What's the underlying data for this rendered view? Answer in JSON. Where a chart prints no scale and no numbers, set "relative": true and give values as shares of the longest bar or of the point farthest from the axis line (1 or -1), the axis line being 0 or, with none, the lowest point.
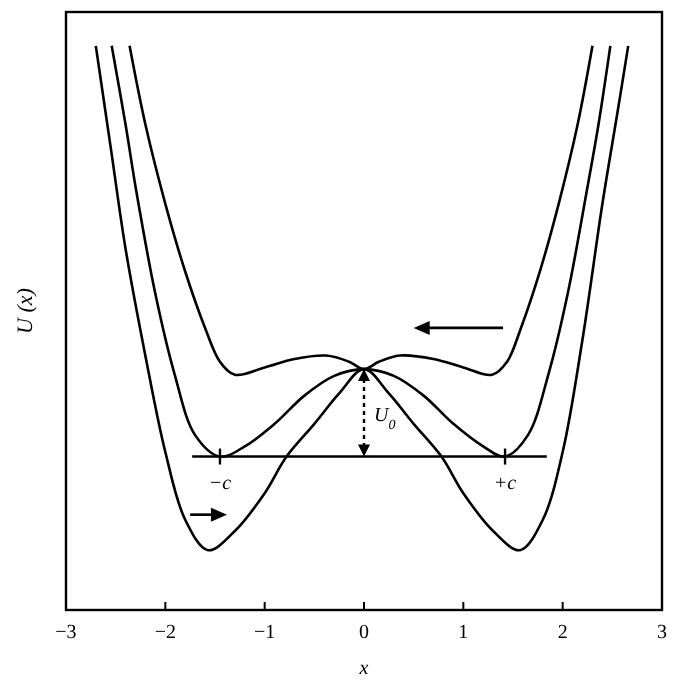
{
  "chart_data": {
    "type": "line",
    "xlabel": "x",
    "ylabel": "U (x)",
    "relative": true,
    "xlim": [
      -3,
      3
    ],
    "xticks": [
      -3,
      -2,
      -1,
      0,
      1,
      2,
      3
    ],
    "grid": false,
    "series": [
      {
        "color": "#000000",
        "x": [
          -2.7,
          -2.55,
          -2.4,
          -2.2,
          -2.0,
          -1.8,
          -1.57,
          -1.3,
          -1.0,
          -0.78,
          -0.5,
          -0.25,
          0,
          0.25,
          0.5,
          0.78,
          1.0,
          1.3,
          1.57,
          1.8,
          2.0,
          2.2,
          2.4,
          2.55,
          2.66
        ],
        "values": [
          1.0,
          0.82,
          0.64,
          0.45,
          0.28,
          0.16,
          0.106,
          0.14,
          0.207,
          0.272,
          0.33,
          0.384,
          0.427,
          0.384,
          0.33,
          0.272,
          0.207,
          0.14,
          0.106,
          0.16,
          0.28,
          0.48,
          0.72,
          0.88,
          1.0
        ]
      },
      {
        "color": "#000000",
        "x": [
          -2.54,
          -2.4,
          -2.29,
          -2.1,
          -1.91,
          -1.7,
          -1.45,
          -1.2,
          -0.9,
          -0.6,
          -0.3,
          0,
          0.3,
          0.6,
          0.9,
          1.2,
          1.42,
          1.65,
          1.86,
          2.05,
          2.24,
          2.36,
          2.48
        ],
        "values": [
          1.0,
          0.86,
          0.74,
          0.56,
          0.42,
          0.31,
          0.272,
          0.29,
          0.33,
          0.38,
          0.415,
          0.427,
          0.415,
          0.38,
          0.33,
          0.29,
          0.272,
          0.31,
          0.42,
          0.56,
          0.74,
          0.86,
          1.0
        ]
      },
      {
        "color": "#000000",
        "x": [
          -2.36,
          -2.2,
          -2.0,
          -1.8,
          -1.6,
          -1.45,
          -1.3,
          -1.0,
          -0.7,
          -0.38,
          -0.15,
          0,
          0.15,
          0.36,
          0.7,
          1.0,
          1.29,
          1.44,
          1.58,
          1.77,
          1.96,
          2.15,
          2.3
        ],
        "values": [
          1.0,
          0.86,
          0.72,
          0.6,
          0.5,
          0.44,
          0.417,
          0.43,
          0.445,
          0.451,
          0.44,
          0.427,
          0.44,
          0.451,
          0.445,
          0.43,
          0.417,
          0.44,
          0.5,
          0.6,
          0.72,
          0.86,
          1.0
        ]
      },
      {
        "color": "#000000",
        "x": [
          -1.73,
          1.84
        ],
        "values": [
          0.272,
          0.272
        ]
      }
    ],
    "annotations": [
      {
        "text": "−c",
        "x": -1.45,
        "y": 0.272
      },
      {
        "text": "+c",
        "x": 1.42,
        "y": 0.272
      },
      "U$_{0}$"
    ]
  }
}
